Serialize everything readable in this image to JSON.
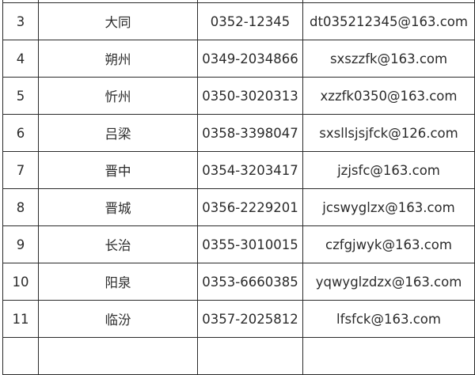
{
  "rows": [
    {
      "no": "",
      "city": "",
      "phone": "",
      "email": ""
    },
    {
      "no": "3",
      "city": "大同",
      "phone": "0352-12345",
      "email": "dt035212345@163.com"
    },
    {
      "no": "4",
      "city": "朔州",
      "phone": "0349-2034866",
      "email": "sxszzfk@163.com"
    },
    {
      "no": "5",
      "city": "忻州",
      "phone": "0350-3020313",
      "email": "xzzfk0350@163.com"
    },
    {
      "no": "6",
      "city": "吕梁",
      "phone": "0358-3398047",
      "email": "sxsllsjsjfck@126.com"
    },
    {
      "no": "7",
      "city": "晋中",
      "phone": "0354-3203417",
      "email": "jzjsfc@163.com"
    },
    {
      "no": "8",
      "city": "晋城",
      "phone": "0356-2229201",
      "email": "jcswyglzx@163.com"
    },
    {
      "no": "9",
      "city": "长治",
      "phone": "0355-3010015",
      "email": "czfgjwyk@163.com"
    },
    {
      "no": "10",
      "city": "阳泉",
      "phone": "0353-6660385",
      "email": "yqwyglzdzx@163.com"
    },
    {
      "no": "11",
      "city": "临汾",
      "phone": "0357-2025812",
      "email": "lfsfck@163.com"
    },
    {
      "no": "",
      "city": "",
      "phone": "",
      "email": ""
    }
  ]
}
